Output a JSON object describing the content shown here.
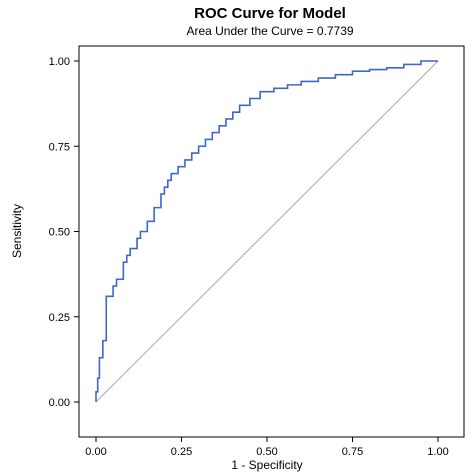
{
  "chart_data": {
    "type": "line",
    "title": "ROC Curve for Model",
    "subtitle": "Area Under the Curve = 0.7739",
    "xlabel": "1 - Specificity",
    "ylabel": "Sensitivity",
    "xlim": [
      0,
      1
    ],
    "ylim": [
      0,
      1
    ],
    "xticks": [
      0.0,
      0.25,
      0.5,
      0.75,
      1.0
    ],
    "yticks": [
      0.0,
      0.25,
      0.5,
      0.75,
      1.0
    ],
    "xtick_labels": [
      "0.00",
      "0.25",
      "0.50",
      "0.75",
      "1.00"
    ],
    "ytick_labels": [
      "0.00",
      "0.25",
      "0.50",
      "0.75",
      "1.00"
    ],
    "grid": false,
    "legend": "none",
    "series": [
      {
        "x": [
          0.0,
          0.0,
          0.005,
          0.005,
          0.01,
          0.01,
          0.02,
          0.02,
          0.03,
          0.03,
          0.05,
          0.05,
          0.06,
          0.06,
          0.08,
          0.08,
          0.09,
          0.09,
          0.1,
          0.1,
          0.12,
          0.12,
          0.13,
          0.13,
          0.15,
          0.15,
          0.17,
          0.17,
          0.19,
          0.19,
          0.2,
          0.2,
          0.21,
          0.21,
          0.22,
          0.22,
          0.24,
          0.24,
          0.26,
          0.26,
          0.28,
          0.28,
          0.3,
          0.3,
          0.32,
          0.32,
          0.34,
          0.34,
          0.36,
          0.36,
          0.38,
          0.38,
          0.4,
          0.4,
          0.42,
          0.42,
          0.45,
          0.45,
          0.48,
          0.48,
          0.52,
          0.52,
          0.56,
          0.56,
          0.6,
          0.6,
          0.65,
          0.65,
          0.7,
          0.7,
          0.75,
          0.75,
          0.8,
          0.8,
          0.85,
          0.85,
          0.9,
          0.9,
          0.95,
          0.95,
          1.0
        ],
        "y": [
          0.0,
          0.03,
          0.03,
          0.07,
          0.07,
          0.13,
          0.13,
          0.18,
          0.18,
          0.31,
          0.31,
          0.34,
          0.34,
          0.36,
          0.36,
          0.41,
          0.41,
          0.43,
          0.43,
          0.45,
          0.45,
          0.48,
          0.48,
          0.5,
          0.5,
          0.53,
          0.53,
          0.57,
          0.57,
          0.61,
          0.61,
          0.63,
          0.63,
          0.65,
          0.65,
          0.67,
          0.67,
          0.69,
          0.69,
          0.71,
          0.71,
          0.73,
          0.73,
          0.75,
          0.75,
          0.77,
          0.77,
          0.79,
          0.79,
          0.81,
          0.81,
          0.83,
          0.83,
          0.85,
          0.85,
          0.87,
          0.87,
          0.89,
          0.89,
          0.91,
          0.91,
          0.92,
          0.92,
          0.93,
          0.93,
          0.94,
          0.94,
          0.95,
          0.95,
          0.96,
          0.96,
          0.97,
          0.97,
          0.975,
          0.975,
          0.98,
          0.98,
          0.99,
          0.99,
          1.0,
          1.0
        ],
        "color": "#3f67c8"
      },
      {
        "x": [
          0,
          1
        ],
        "y": [
          0,
          1
        ],
        "color": "#a7a7a7"
      }
    ]
  }
}
